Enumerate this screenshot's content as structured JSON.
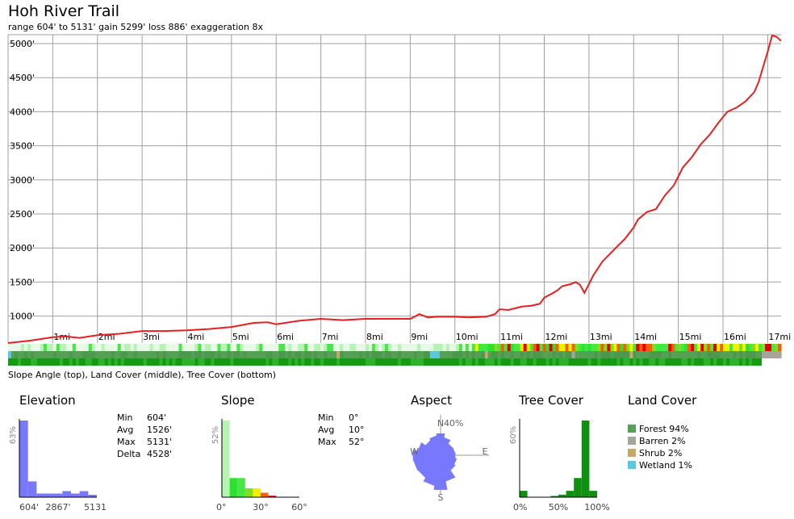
{
  "title": "Hoh River Trail",
  "subtitle": "range 604' to 5131'  gain 5299'  loss 886'  exaggeration 8x",
  "strip_caption": "Slope Angle (top), Land Cover (middle), Tree Cover (bottom)",
  "chart_data": [
    {
      "type": "line",
      "title": "Hoh River Trail",
      "ylim": [
        604,
        5131
      ],
      "y_ticks": [
        "1000'",
        "1500'",
        "2000'",
        "2500'",
        "3000'",
        "3500'",
        "4000'",
        "4500'",
        "5000'"
      ],
      "y_tick_values": [
        1000,
        1500,
        2000,
        2500,
        3000,
        3500,
        4000,
        4500,
        5000
      ],
      "x_ticks": [
        "1mi",
        "2mi",
        "3mi",
        "4mi",
        "5mi",
        "6mi",
        "7mi",
        "8mi",
        "9mi",
        "10mi",
        "11mi",
        "12mi",
        "13mi",
        "14mi",
        "15mi",
        "16mi",
        "17mi"
      ],
      "x_tick_values": [
        1,
        2,
        3,
        4,
        5,
        6,
        7,
        8,
        9,
        10,
        11,
        12,
        13,
        14,
        15,
        16,
        17
      ],
      "xlim": [
        0,
        17.3
      ],
      "grid": true,
      "line_color": "#e62020",
      "series": [
        {
          "x": [
            0,
            0.5,
            1,
            1.3,
            1.6,
            2,
            2.5,
            3,
            3.5,
            4,
            4.5,
            5,
            5.5,
            5.8,
            6,
            6.5,
            7,
            7.5,
            8,
            8.5,
            9,
            9.1,
            9.2,
            9.4,
            9.6,
            10,
            10.3,
            10.7,
            10.9,
            11,
            11.2,
            11.5,
            11.7,
            11.9,
            12,
            12.2,
            12.3,
            12.4,
            12.6,
            12.7,
            12.8,
            12.9,
            13.1,
            13.3,
            13.6,
            13.8,
            14,
            14.1,
            14.3,
            14.5,
            14.7,
            14.9,
            15.1,
            15.3,
            15.5,
            15.7,
            15.9,
            16.1,
            16.3,
            16.5,
            16.7,
            16.8,
            16.9,
            17,
            17.1,
            17.2,
            17.3
          ],
          "y": [
            604,
            640,
            690,
            700,
            680,
            720,
            740,
            780,
            780,
            790,
            810,
            840,
            900,
            910,
            880,
            930,
            960,
            940,
            960,
            960,
            960,
            990,
            1030,
            980,
            990,
            990,
            980,
            990,
            1030,
            1100,
            1090,
            1140,
            1150,
            1180,
            1270,
            1340,
            1380,
            1440,
            1470,
            1500,
            1460,
            1340,
            1600,
            1800,
            2000,
            2130,
            2300,
            2420,
            2530,
            2570,
            2770,
            2920,
            3180,
            3330,
            3520,
            3660,
            3840,
            4000,
            4060,
            4150,
            4290,
            4440,
            4660,
            4880,
            5120,
            5100,
            5040
          ]
        }
      ]
    },
    {
      "type": "bar",
      "title": "Elevation",
      "x_ticks": [
        "604'",
        "2867'",
        "5131"
      ],
      "y_max_label": "63%",
      "values": [
        63,
        13,
        3,
        3,
        3,
        5,
        3,
        5,
        2
      ]
    },
    {
      "type": "bar",
      "title": "Slope",
      "x_ticks": [
        "0°",
        "30°",
        "60°"
      ],
      "y_max_label": "52%",
      "values": [
        52,
        13,
        13,
        6,
        6,
        3,
        1,
        0,
        0,
        0
      ],
      "colors": [
        "#b4f5b4",
        "#30e030",
        "#44e844",
        "#80e020",
        "#f0f000",
        "#f06010",
        "#e00000",
        "#a00000",
        "#800000",
        "#600000"
      ]
    },
    {
      "type": "pie",
      "title": "Aspect",
      "labels": [
        "N",
        "NE",
        "E",
        "SE",
        "S",
        "SW",
        "W",
        "NW"
      ],
      "compass_labels": {
        "n": "N",
        "e": "E",
        "s": "S",
        "w": "W"
      },
      "scale_label": "40%",
      "values": [
        22,
        14,
        15,
        18,
        35,
        27,
        28,
        18
      ]
    },
    {
      "type": "bar",
      "title": "Tree Cover",
      "x_ticks": [
        "0%",
        "50%",
        "100%"
      ],
      "y_max_label": "60%",
      "values": [
        5,
        0,
        0,
        0,
        1,
        2,
        5,
        15,
        60,
        5
      ]
    }
  ],
  "elevation_stats": {
    "min_label": "Min",
    "min": "604'",
    "avg_label": "Avg",
    "avg": "1526'",
    "max_label": "Max",
    "max": "5131'",
    "delta_label": "Delta",
    "delta": "4528'"
  },
  "slope_stats": {
    "min_label": "Min",
    "min": "0°",
    "avg_label": "Avg",
    "avg": "10°",
    "max_label": "Max",
    "max": "52°"
  },
  "land_cover": {
    "title": "Land Cover",
    "items": [
      {
        "label": "Forest 94%",
        "color": "#55a055"
      },
      {
        "label": "Barren 2%",
        "color": "#a8a49c"
      },
      {
        "label": "Shrub 2%",
        "color": "#c8a868"
      },
      {
        "label": "Wetland 1%",
        "color": "#5cc8e0"
      }
    ]
  },
  "colors": {
    "grid": "#a0a0a0",
    "elevation_bar": "#7878ff",
    "tree_bar": "#109010",
    "aspect": "#7878ff"
  }
}
